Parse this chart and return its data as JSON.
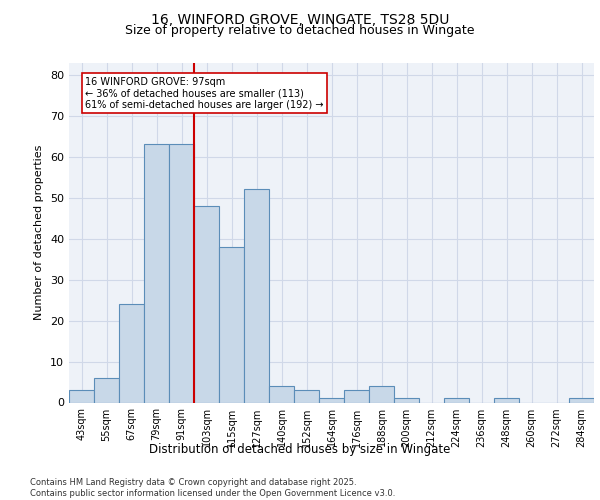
{
  "title_line1": "16, WINFORD GROVE, WINGATE, TS28 5DU",
  "title_line2": "Size of property relative to detached houses in Wingate",
  "xlabel": "Distribution of detached houses by size in Wingate",
  "ylabel": "Number of detached properties",
  "categories": [
    "43sqm",
    "55sqm",
    "67sqm",
    "79sqm",
    "91sqm",
    "103sqm",
    "115sqm",
    "127sqm",
    "140sqm",
    "152sqm",
    "164sqm",
    "176sqm",
    "188sqm",
    "200sqm",
    "212sqm",
    "224sqm",
    "236sqm",
    "248sqm",
    "260sqm",
    "272sqm",
    "284sqm"
  ],
  "values": [
    3,
    6,
    24,
    63,
    63,
    48,
    38,
    52,
    4,
    3,
    1,
    3,
    4,
    1,
    0,
    1,
    0,
    1,
    0,
    0,
    1
  ],
  "bar_color": "#c8d8e8",
  "bar_edge_color": "#5b8db8",
  "reference_line_x": 4.5,
  "reference_line_label": "16 WINFORD GROVE: 97sqm",
  "annotation_line2": "← 36% of detached houses are smaller (113)",
  "annotation_line3": "61% of semi-detached houses are larger (192) →",
  "annotation_box_color": "#ffffff",
  "annotation_box_edge_color": "#cc0000",
  "ref_line_color": "#cc0000",
  "ylim": [
    0,
    83
  ],
  "yticks": [
    0,
    10,
    20,
    30,
    40,
    50,
    60,
    70,
    80
  ],
  "grid_color": "#d0d8e8",
  "bg_color": "#eef2f8",
  "footer_line1": "Contains HM Land Registry data © Crown copyright and database right 2025.",
  "footer_line2": "Contains public sector information licensed under the Open Government Licence v3.0."
}
